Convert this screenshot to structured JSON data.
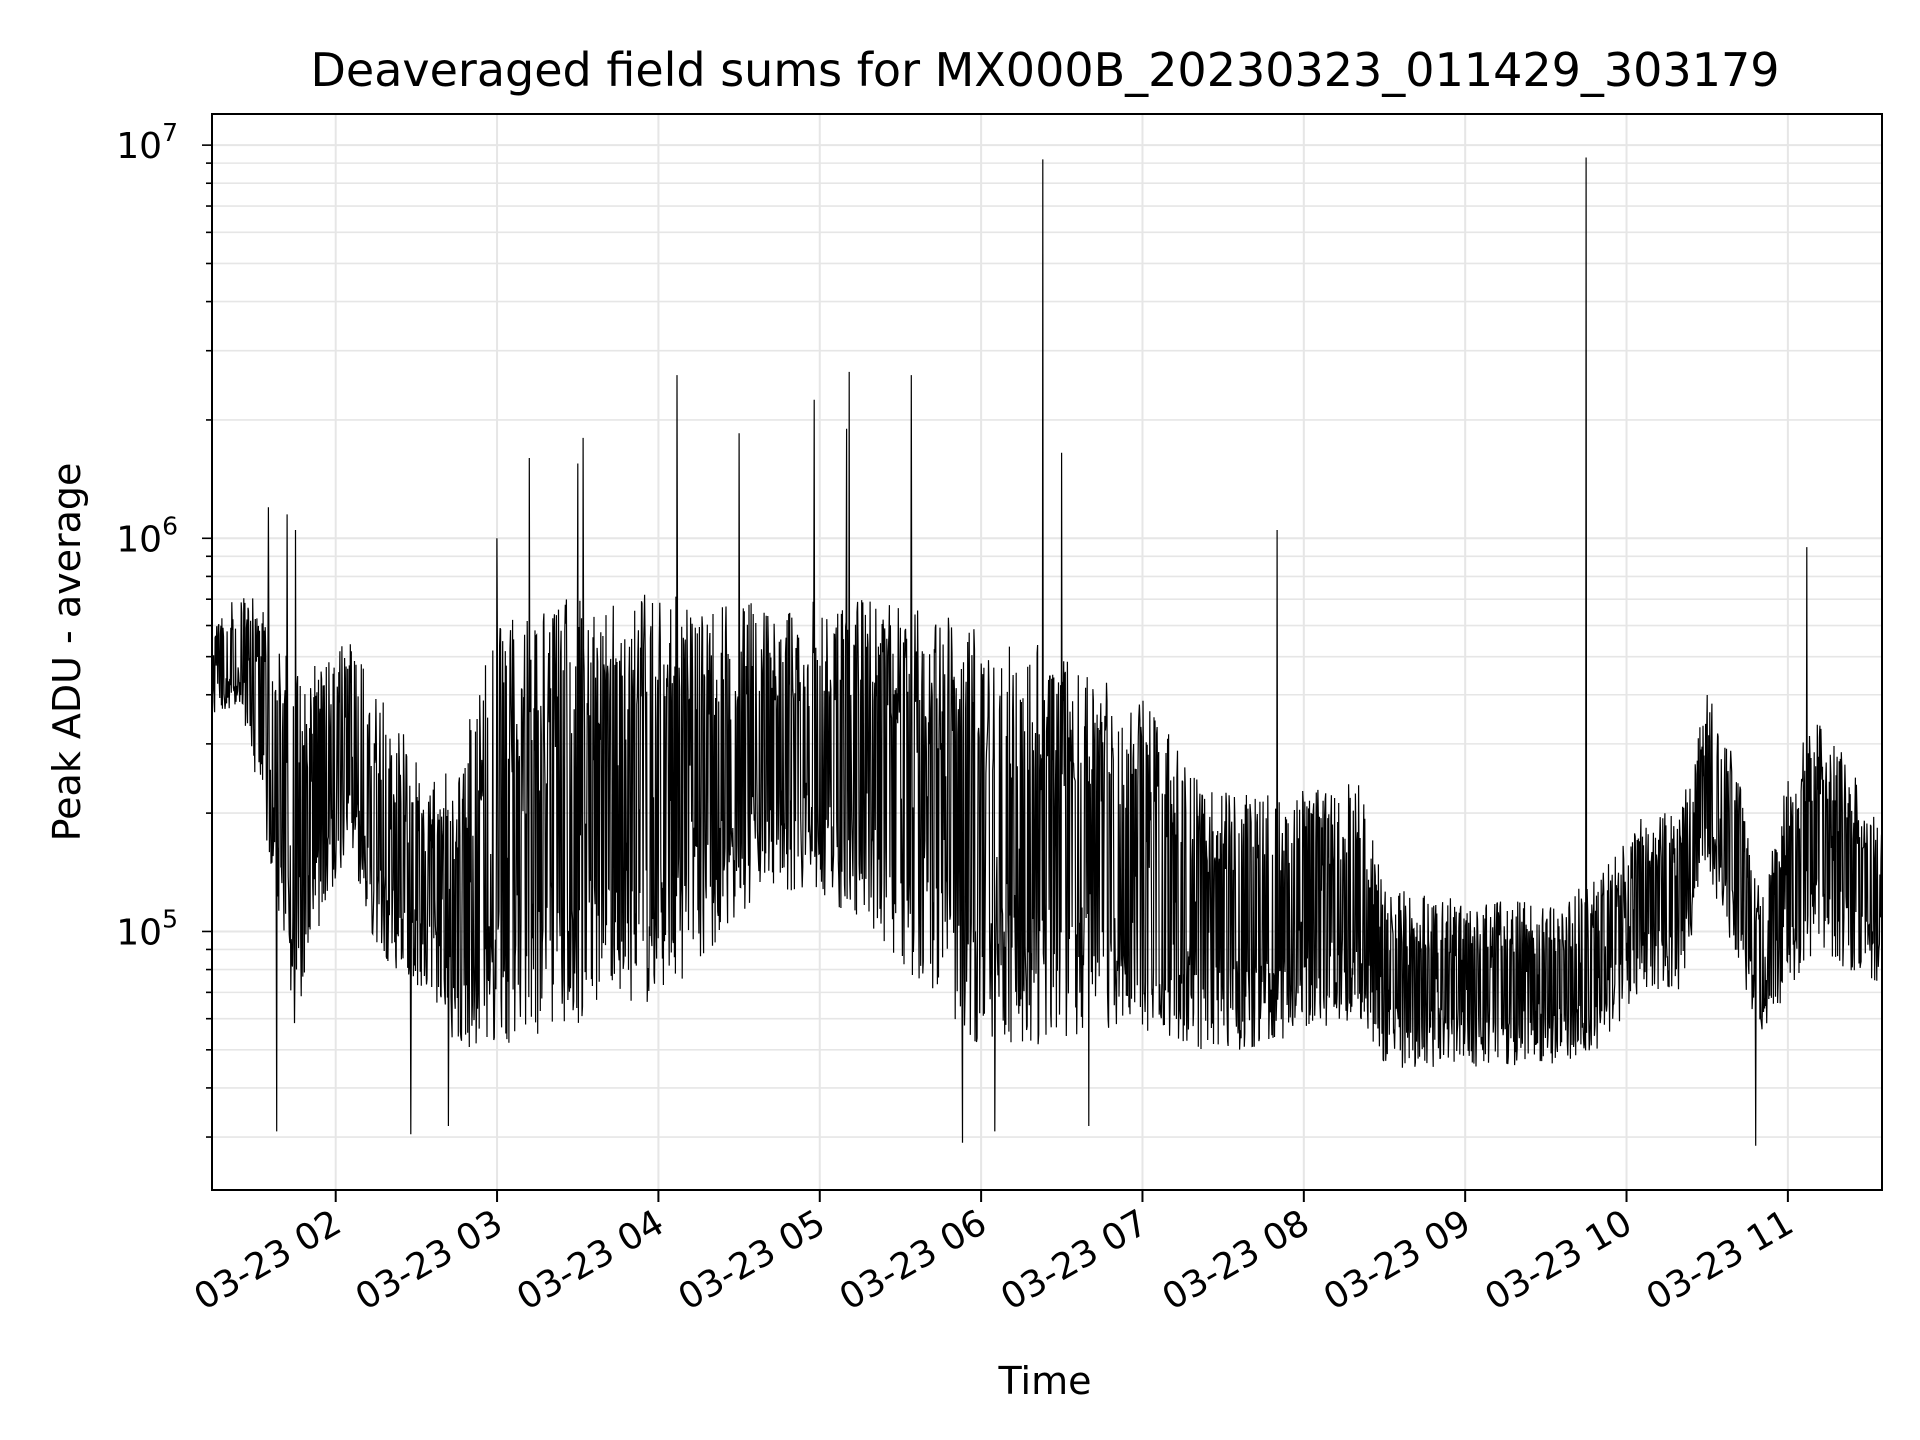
{
  "chart_data": {
    "type": "line",
    "title": "Deaveraged field sums for MX000B_20230323_011429_303179",
    "xlabel": "Time",
    "ylabel": "Peak ADU - average",
    "yscale": "log",
    "ylim": [
      22000,
      12000000
    ],
    "xlim": [
      "03-23 01:14",
      "03-23 11:35"
    ],
    "grid": true,
    "line_color": "#000000",
    "grid_color": "#e6e6e6",
    "x_ticks": [
      "03-23 02",
      "03-23 03",
      "03-23 04",
      "03-23 05",
      "03-23 06",
      "03-23 07",
      "03-23 08",
      "03-23 09",
      "03-23 10",
      "03-23 11"
    ],
    "y_ticks": [
      {
        "base": "10",
        "exp": "5",
        "value": 100000
      },
      {
        "base": "10",
        "exp": "6",
        "value": 1000000
      },
      {
        "base": "10",
        "exp": "7",
        "value": 10000000
      }
    ],
    "series": [
      {
        "envelope": [
          {
            "t": "03-23 01:14",
            "low": 350000,
            "high": 600000
          },
          {
            "t": "03-23 01:25",
            "low": 380000,
            "high": 750000
          },
          {
            "t": "03-23 01:35",
            "low": 150000,
            "high": 650000
          },
          {
            "t": "03-23 01:45",
            "low": 55000,
            "high": 450000
          },
          {
            "t": "03-23 01:55",
            "low": 110000,
            "high": 500000
          },
          {
            "t": "03-23 02:05",
            "low": 160000,
            "high": 550000
          },
          {
            "t": "03-23 02:15",
            "low": 90000,
            "high": 420000
          },
          {
            "t": "03-23 02:25",
            "low": 75000,
            "high": 320000
          },
          {
            "t": "03-23 02:35",
            "low": 70000,
            "high": 230000
          },
          {
            "t": "03-23 02:45",
            "low": 50000,
            "high": 300000
          },
          {
            "t": "03-23 03:00",
            "low": 50000,
            "high": 600000
          },
          {
            "t": "03-23 03:20",
            "low": 55000,
            "high": 700000
          },
          {
            "t": "03-23 03:40",
            "low": 60000,
            "high": 720000
          },
          {
            "t": "03-23 04:00",
            "low": 65000,
            "high": 720000
          },
          {
            "t": "03-23 04:20",
            "low": 90000,
            "high": 700000
          },
          {
            "t": "03-23 04:40",
            "low": 130000,
            "high": 700000
          },
          {
            "t": "03-23 05:00",
            "low": 120000,
            "high": 700000
          },
          {
            "t": "03-23 05:20",
            "low": 100000,
            "high": 700000
          },
          {
            "t": "03-23 05:40",
            "low": 70000,
            "high": 650000
          },
          {
            "t": "03-23 06:00",
            "low": 50000,
            "high": 600000
          },
          {
            "t": "03-23 06:20",
            "low": 50000,
            "high": 550000
          },
          {
            "t": "03-23 06:40",
            "low": 55000,
            "high": 450000
          },
          {
            "t": "03-23 07:00",
            "low": 55000,
            "high": 400000
          },
          {
            "t": "03-23 07:20",
            "low": 50000,
            "high": 250000
          },
          {
            "t": "03-23 07:40",
            "low": 50000,
            "high": 230000
          },
          {
            "t": "03-23 08:00",
            "low": 55000,
            "high": 230000
          },
          {
            "t": "03-23 08:20",
            "low": 60000,
            "high": 250000
          },
          {
            "t": "03-23 08:30",
            "low": 45000,
            "high": 130000
          },
          {
            "t": "03-23 09:00",
            "low": 45000,
            "high": 120000
          },
          {
            "t": "03-23 09:30",
            "low": 45000,
            "high": 120000
          },
          {
            "t": "03-23 09:50",
            "low": 50000,
            "high": 140000
          },
          {
            "t": "03-23 10:05",
            "low": 70000,
            "high": 200000
          },
          {
            "t": "03-23 10:20",
            "low": 70000,
            "high": 200000
          },
          {
            "t": "03-23 10:30",
            "low": 150000,
            "high": 400000
          },
          {
            "t": "03-23 10:40",
            "low": 80000,
            "high": 300000
          },
          {
            "t": "03-23 10:50",
            "low": 55000,
            "high": 120000
          },
          {
            "t": "03-23 11:00",
            "low": 70000,
            "high": 250000
          },
          {
            "t": "03-23 11:10",
            "low": 90000,
            "high": 350000
          },
          {
            "t": "03-23 11:20",
            "low": 80000,
            "high": 300000
          },
          {
            "t": "03-23 11:35",
            "low": 70000,
            "high": 180000
          }
        ],
        "spikes": [
          {
            "t": "03-23 01:35",
            "value": 1200000
          },
          {
            "t": "03-23 01:42",
            "value": 1150000
          },
          {
            "t": "03-23 01:45",
            "value": 1050000
          },
          {
            "t": "03-23 03:00",
            "value": 1000000
          },
          {
            "t": "03-23 03:12",
            "value": 1600000
          },
          {
            "t": "03-23 03:30",
            "value": 1550000
          },
          {
            "t": "03-23 03:32",
            "value": 1800000
          },
          {
            "t": "03-23 04:07",
            "value": 2600000
          },
          {
            "t": "03-23 04:30",
            "value": 1850000
          },
          {
            "t": "03-23 04:58",
            "value": 2250000
          },
          {
            "t": "03-23 05:10",
            "value": 1900000
          },
          {
            "t": "03-23 05:11",
            "value": 2650000
          },
          {
            "t": "03-23 05:34",
            "value": 2600000
          },
          {
            "t": "03-23 06:23",
            "value": 9200000
          },
          {
            "t": "03-23 06:30",
            "value": 1650000
          },
          {
            "t": "03-23 07:50",
            "value": 1050000
          },
          {
            "t": "03-23 09:45",
            "value": 9300000
          },
          {
            "t": "03-23 11:07",
            "value": 950000
          }
        ],
        "dips": [
          {
            "t": "03-23 01:38",
            "value": 31000
          },
          {
            "t": "03-23 02:28",
            "value": 30500
          },
          {
            "t": "03-23 02:42",
            "value": 32000
          },
          {
            "t": "03-23 05:53",
            "value": 29000
          },
          {
            "t": "03-23 06:05",
            "value": 31000
          },
          {
            "t": "03-23 06:40",
            "value": 32000
          },
          {
            "t": "03-23 10:48",
            "value": 28500
          }
        ]
      }
    ]
  }
}
